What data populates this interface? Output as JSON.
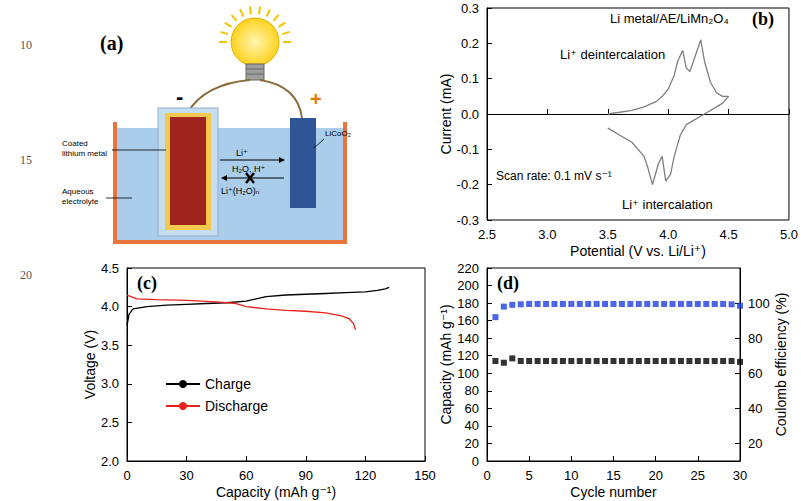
{
  "margin_line_numbers": [
    10,
    15,
    20
  ],
  "diagram": {
    "panel_label": "(a)",
    "negative_sign": "-",
    "positive_sign": "+",
    "anode_label": "Coated lithium metal",
    "electrolyte_label": "Aqueous electrolyte",
    "cathode_label": "LiCoO₂",
    "ion_flow": "Li⁺",
    "blocked_species": "H₂O, H⁺",
    "solvated_ion": "Li⁺(H₂O)ₙ"
  },
  "chart_data": [
    {
      "type": "line",
      "panel_label": "(b)",
      "annotations": [
        "Li metal/AE/LiMn₂O₄",
        "Li⁺ deintercalation",
        "Scan rate: 0.1 mV s⁻¹",
        "Li⁺ intercalation"
      ],
      "x_label": "Potential (V vs. Li/Li⁺)",
      "y_label": "Current (mA)",
      "xlim": [
        2.5,
        5.0
      ],
      "xticks": [
        2.5,
        {
          "value": 3,
          "label": "3.0"
        },
        3.5,
        {
          "value": 4,
          "label": "4.0"
        },
        4.5,
        {
          "value": 5,
          "label": "5.0"
        }
      ],
      "ylim": [
        -0.3,
        0.3
      ],
      "yticks": [
        -0.3,
        -0.2,
        -0.1,
        {
          "value": 0,
          "label": "0.0"
        },
        0.1,
        0.2,
        0.3
      ],
      "grid": false,
      "series": [
        {
          "color": "#7f7f7f",
          "line_style": "solid",
          "x": [
            3.5,
            3.6,
            3.7,
            3.8,
            3.9,
            3.95,
            4.0,
            4.05,
            4.08,
            4.12,
            4.15,
            4.18,
            4.22,
            4.27,
            4.3,
            4.35,
            4.4,
            4.45,
            4.5,
            4.45,
            4.4,
            4.3,
            4.2,
            4.15,
            4.1,
            4.05,
            4.02,
            3.98,
            3.95,
            3.92,
            3.87,
            3.83,
            3.8,
            3.7,
            3.6,
            3.5
          ],
          "values": [
            0.0,
            0.005,
            0.01,
            0.02,
            0.035,
            0.05,
            0.07,
            0.11,
            0.15,
            0.18,
            0.13,
            0.12,
            0.16,
            0.21,
            0.15,
            0.09,
            0.06,
            0.05,
            0.05,
            0.03,
            0.02,
            0.0,
            -0.02,
            -0.03,
            -0.06,
            -0.12,
            -0.17,
            -0.19,
            -0.12,
            -0.14,
            -0.2,
            -0.15,
            -0.12,
            -0.08,
            -0.06,
            -0.04
          ]
        }
      ]
    },
    {
      "type": "line",
      "panel_label": "(c)",
      "x_label": "Capacity (mAh g⁻¹)",
      "y_label": "Voltage (V)",
      "xlim": [
        0,
        150
      ],
      "xticks": [
        0,
        30,
        60,
        90,
        120,
        150
      ],
      "ylim": [
        2.0,
        4.5
      ],
      "yticks": [
        {
          "value": 2,
          "label": "2.0"
        },
        2.5,
        {
          "value": 3,
          "label": "3.0"
        },
        3.5,
        {
          "value": 4,
          "label": "4.0"
        },
        4.5
      ],
      "grid": false,
      "legend": "left",
      "series": [
        {
          "name": "Charge",
          "color": "#000000",
          "line_style": "solid",
          "x": [
            0,
            1,
            3,
            10,
            20,
            30,
            40,
            50,
            60,
            65,
            70,
            80,
            90,
            100,
            110,
            120,
            126,
            130,
            132
          ],
          "values": [
            3.75,
            3.9,
            3.97,
            4.0,
            4.02,
            4.03,
            4.04,
            4.05,
            4.07,
            4.1,
            4.13,
            4.15,
            4.16,
            4.17,
            4.18,
            4.19,
            4.21,
            4.23,
            4.25
          ]
        },
        {
          "name": "Discharge",
          "color": "#e8211d",
          "line_style": "solid",
          "x": [
            0,
            5,
            15,
            30,
            45,
            55,
            60,
            70,
            80,
            90,
            100,
            108,
            112,
            114,
            115
          ],
          "values": [
            4.15,
            4.1,
            4.09,
            4.08,
            4.06,
            4.04,
            4.0,
            3.97,
            3.95,
            3.94,
            3.92,
            3.88,
            3.84,
            3.78,
            3.7
          ]
        }
      ]
    },
    {
      "type": "scatter",
      "panel_label": "(d)",
      "x_label": "Cycle number",
      "y_label": "Capacity (mAh g⁻¹)",
      "y2_label": "Coulomb efficiency (%)",
      "xlim": [
        0,
        30
      ],
      "xticks": [
        0,
        5,
        10,
        15,
        20,
        25,
        30
      ],
      "ylim": [
        0,
        220
      ],
      "yticks": [
        0,
        20,
        40,
        60,
        80,
        100,
        120,
        140,
        160,
        180,
        200,
        220
      ],
      "y2lim": [
        10,
        120
      ],
      "y2ticks": [
        20,
        40,
        60,
        80,
        100
      ],
      "grid": false,
      "x": [
        1,
        2,
        3,
        4,
        5,
        6,
        7,
        8,
        9,
        10,
        11,
        12,
        13,
        14,
        15,
        16,
        17,
        18,
        19,
        20,
        21,
        22,
        23,
        24,
        25,
        26,
        27,
        28,
        29,
        30
      ],
      "series": [
        {
          "color": "#000000",
          "marker": "square",
          "values": [
            114,
            112,
            117,
            114,
            114,
            114,
            114,
            114,
            114,
            114,
            114,
            114,
            114,
            114,
            114,
            114,
            114,
            114,
            114,
            114,
            114,
            114,
            114,
            114,
            114,
            114,
            114,
            114,
            114,
            113
          ]
        },
        {
          "color": "#1f3fe0",
          "marker": "square",
          "axis": "y2",
          "values": [
            92,
            98,
            99,
            99.3,
            99.5,
            99.5,
            99.5,
            99.5,
            99.5,
            99.5,
            99.5,
            99.5,
            99.5,
            99.5,
            99.5,
            99.5,
            99.5,
            99.5,
            99.5,
            99.5,
            99.5,
            99.5,
            99.5,
            99.5,
            99.5,
            99.5,
            99.5,
            99.5,
            99.3,
            98.5
          ]
        }
      ]
    }
  ]
}
